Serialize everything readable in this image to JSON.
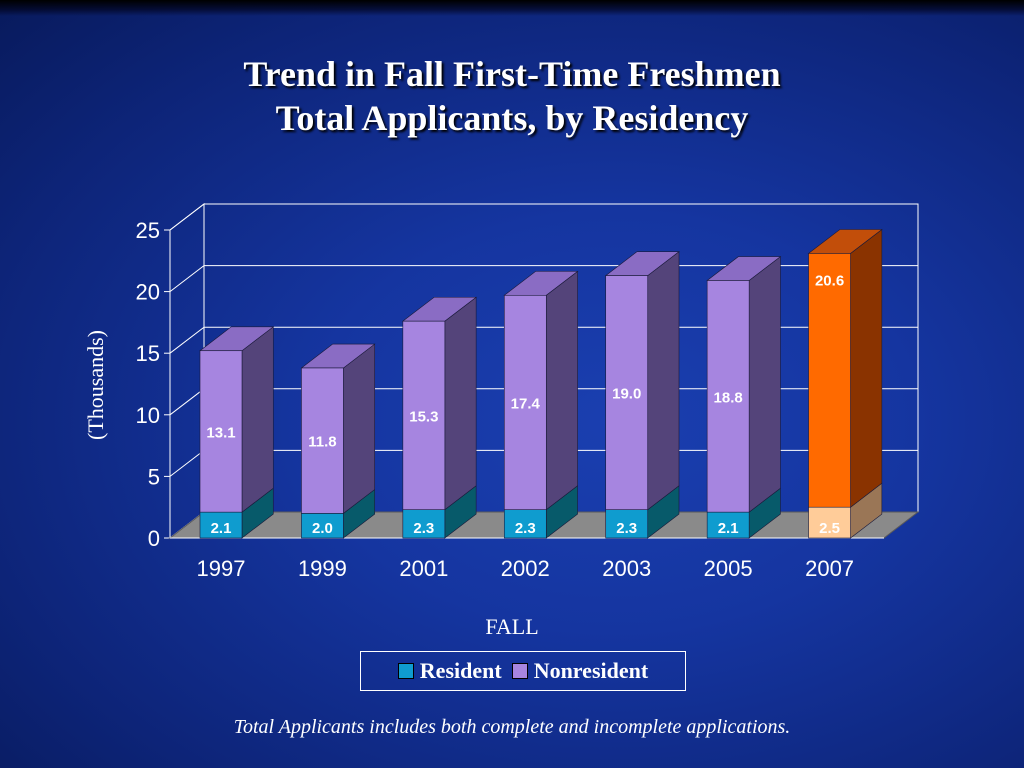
{
  "chart_data": {
    "type": "bar",
    "stacked": true,
    "title_lines": [
      "Trend in Fall First-Time Freshmen",
      "Total Applicants, by Residency"
    ],
    "xlabel": "FALL",
    "ylabel": "(Thousands)",
    "ylim": [
      0,
      25
    ],
    "yticks": [
      "0",
      "5",
      "10",
      "15",
      "20",
      "25"
    ],
    "categories": [
      "1997",
      "1999",
      "2001",
      "2002",
      "2003",
      "2005",
      "2007"
    ],
    "series": [
      {
        "name": "Resident",
        "values": [
          2.1,
          2.0,
          2.3,
          2.3,
          2.3,
          2.1,
          2.5
        ],
        "labels": [
          "2.1",
          "2.0",
          "2.3",
          "2.3",
          "2.3",
          "2.1",
          "2.5"
        ]
      },
      {
        "name": "Nonresident",
        "values": [
          13.1,
          11.8,
          15.3,
          17.4,
          19.0,
          18.8,
          20.6
        ],
        "labels": [
          "13.1",
          "11.8",
          "15.3",
          "17.4",
          "19.0",
          "18.8",
          "20.6"
        ]
      }
    ],
    "grid": true,
    "legend_position": "bottom",
    "highlight_category": "2007",
    "colors": {
      "resident_front": "#0f9ccf",
      "resident_top": "#18c2e8",
      "resident_side": "#075a6a",
      "nonresident_front": "#a685e0",
      "nonresident_top": "#8a6cc4",
      "nonresident_side": "#54447a",
      "highlight_resident_front": "#ffcc99",
      "highlight_resident_side": "#9a7656",
      "highlight_nonresident_front": "#ff6a00",
      "highlight_nonresident_top": "#c24e0a",
      "highlight_nonresident_side": "#8a3300",
      "floor": "#8a8a8a",
      "grid": "#ffffff"
    }
  },
  "footnote": "Total Applicants includes both complete and incomplete applications."
}
